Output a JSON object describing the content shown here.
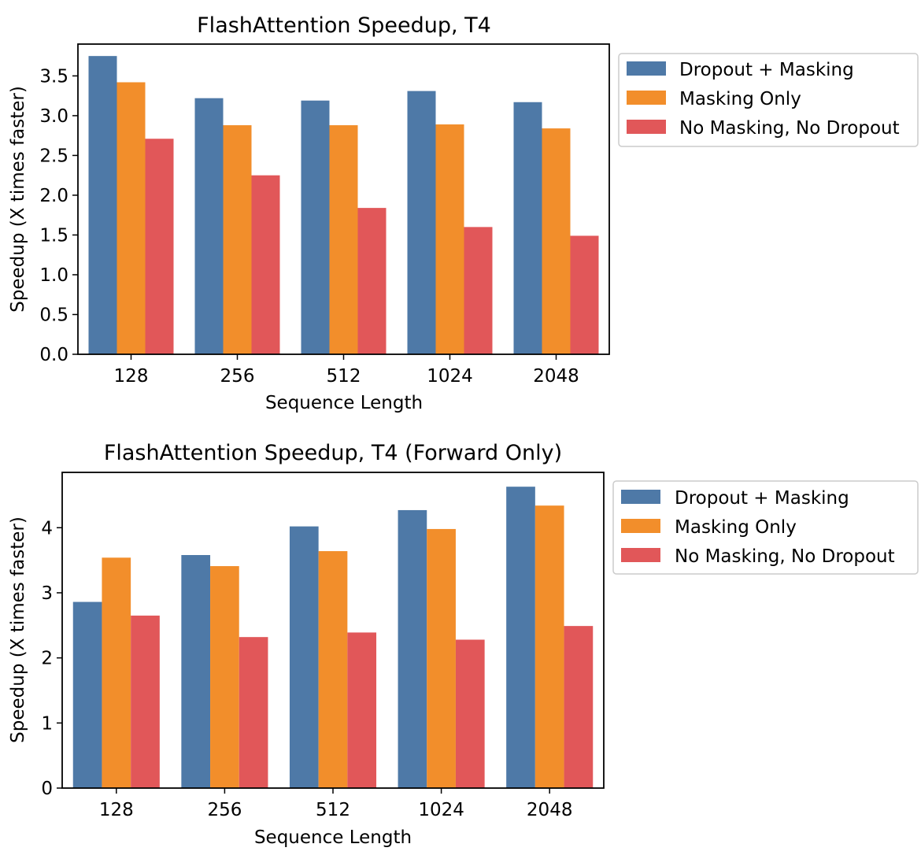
{
  "colors": {
    "dropout_masking": "#4e79a7",
    "masking_only": "#f28e2b",
    "no_masking_no_dropout": "#e15759"
  },
  "chart_data": [
    {
      "type": "bar",
      "title": "FlashAttention Speedup, T4",
      "xlabel": "Sequence Length",
      "ylabel": "Speedup (X times faster)",
      "categories": [
        "128",
        "256",
        "512",
        "1024",
        "2048"
      ],
      "ylim": [
        0,
        3.9
      ],
      "yticks": [
        "0.0",
        "0.5",
        "1.0",
        "1.5",
        "2.0",
        "2.5",
        "3.0",
        "3.5"
      ],
      "legend_position": "outside upper-right",
      "grid": false,
      "series": [
        {
          "name": "Dropout + Masking",
          "values": [
            3.75,
            3.22,
            3.19,
            3.31,
            3.17
          ]
        },
        {
          "name": "Masking Only",
          "values": [
            3.42,
            2.88,
            2.88,
            2.89,
            2.84
          ]
        },
        {
          "name": "No Masking, No Dropout",
          "values": [
            2.71,
            2.25,
            1.84,
            1.6,
            1.49
          ]
        }
      ]
    },
    {
      "type": "bar",
      "title": "FlashAttention Speedup, T4 (Forward Only)",
      "xlabel": "Sequence Length",
      "ylabel": "Speedup (X times faster)",
      "categories": [
        "128",
        "256",
        "512",
        "1024",
        "2048"
      ],
      "ylim": [
        0,
        4.85
      ],
      "yticks": [
        "0",
        "1",
        "2",
        "3",
        "4"
      ],
      "legend_position": "outside upper-right",
      "grid": false,
      "series": [
        {
          "name": "Dropout + Masking",
          "values": [
            2.86,
            3.58,
            4.02,
            4.27,
            4.63
          ]
        },
        {
          "name": "Masking Only",
          "values": [
            3.54,
            3.41,
            3.64,
            3.98,
            4.34
          ]
        },
        {
          "name": "No Masking, No Dropout",
          "values": [
            2.65,
            2.32,
            2.39,
            2.28,
            2.49
          ]
        }
      ]
    }
  ]
}
